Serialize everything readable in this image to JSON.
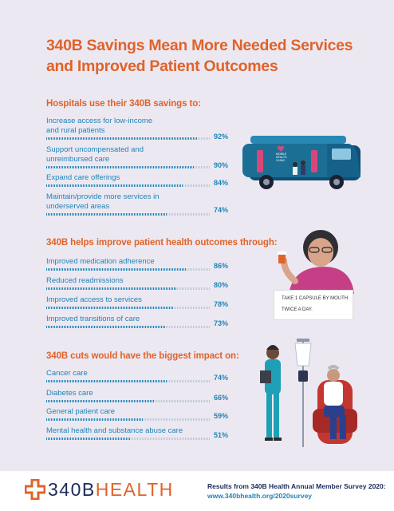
{
  "title": {
    "line1": "340B Savings Mean More Needed Services",
    "line2": "and Improved Patient Outcomes"
  },
  "sections": [
    {
      "heading": "Hospitals use their 340B savings to:",
      "items": [
        {
          "label1": "Increase access for low-income",
          "label2": "and rural patients",
          "pct": "92%",
          "value": 92
        },
        {
          "label1": "Support uncompensated and",
          "label2": "unreimbursed care",
          "pct": "90%",
          "value": 90
        },
        {
          "label1": "Expand care offerings",
          "label2": "",
          "pct": "84%",
          "value": 84
        },
        {
          "label1": "Maintain/provide more services in",
          "label2": "underserved areas",
          "pct": "74%",
          "value": 74
        }
      ]
    },
    {
      "heading": "340B helps improve patient health outcomes through:",
      "items": [
        {
          "label1": "Improved medication adherence",
          "label2": "",
          "pct": "86%",
          "value": 86
        },
        {
          "label1": "Reduced readmissions",
          "label2": "",
          "pct": "80%",
          "value": 80
        },
        {
          "label1": "Improved access to services",
          "label2": "",
          "pct": "78%",
          "value": 78
        },
        {
          "label1": "Improved transitions of care",
          "label2": "",
          "pct": "73%",
          "value": 73
        }
      ]
    },
    {
      "heading": "340B cuts would have the biggest impact on:",
      "items": [
        {
          "label1": "Cancer care",
          "label2": "",
          "pct": "74%",
          "value": 74
        },
        {
          "label1": "Diabetes care",
          "label2": "",
          "pct": "66%",
          "value": 66
        },
        {
          "label1": "General patient care",
          "label2": "",
          "pct": "59%",
          "value": 59
        },
        {
          "label1": "Mental health and substance abuse care",
          "label2": "",
          "pct": "51%",
          "value": 51
        }
      ]
    }
  ],
  "illustrations": {
    "van_sign1": "MOBILE",
    "van_sign2": "HEALTH",
    "van_sign3": "CLINIC",
    "note_line1": "TAKE 1 CAPSULE BY MOUTH",
    "note_line2": "TWICE A DAY."
  },
  "footer": {
    "logo_num": "340B",
    "logo_word": "HEALTH",
    "source_line1": "Results from 340B Health Annual Member Survey 2020:",
    "source_line2": "www.340bhealth.org/2020survey"
  },
  "colors": {
    "accent_orange": "#e0632a",
    "accent_blue": "#1f84b8",
    "navy": "#1b2b5a",
    "background": "#ece8f1"
  }
}
